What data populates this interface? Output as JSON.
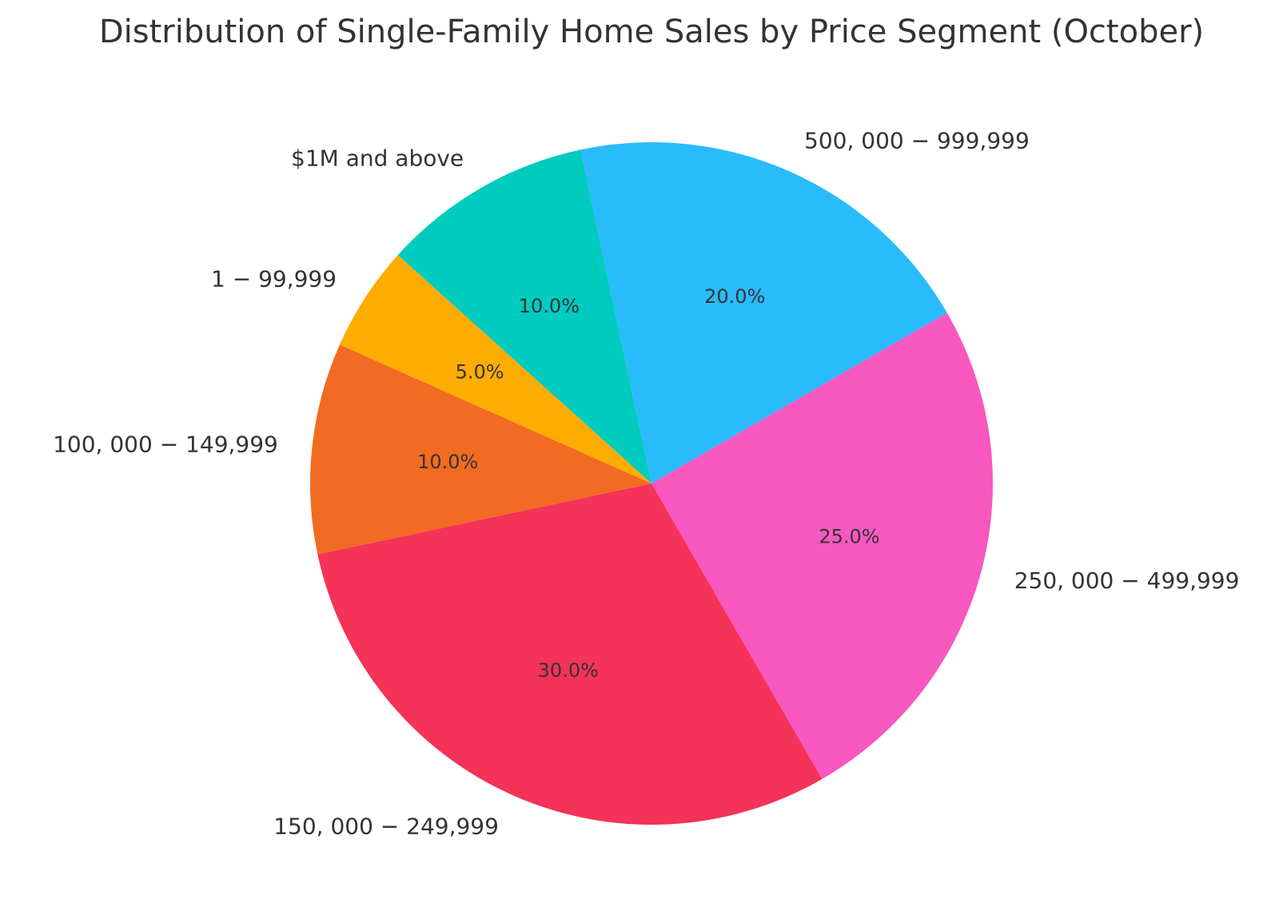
{
  "chart_data": {
    "type": "pie",
    "title": "Distribution of Single-Family Home Sales by Price Segment (October)",
    "categories": [
      "$500,000 - $999,999",
      "$1M and above",
      "$1 - $99,999",
      "$100,000 - $149,999",
      "$150,000 - $249,999",
      "$250,000 - $499,999"
    ],
    "labels_display": [
      "500, 000 − 999,999",
      "$1M and above",
      "1 − 99,999",
      "100, 000 − 149,999",
      "150, 000 − 249,999",
      "250, 000 − 499,999"
    ],
    "values": [
      20.0,
      10.0,
      5.0,
      10.0,
      30.0,
      25.0
    ],
    "percent_labels": [
      "20.0%",
      "10.0%",
      "5.0%",
      "10.0%",
      "30.0%",
      "25.0%"
    ],
    "colors": [
      "#29bbfb",
      "#00cbbf",
      "#ffac00",
      "#f26b22",
      "#f53257",
      "#f858c0"
    ],
    "start_angle_deg": 30,
    "direction": "counterclockwise",
    "legend": "none"
  }
}
